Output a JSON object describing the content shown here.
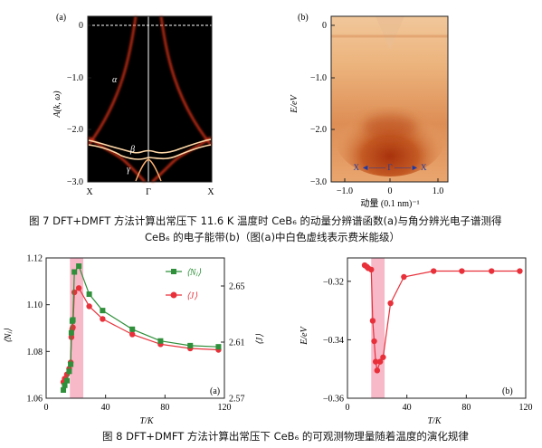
{
  "fig7": {
    "panel_a": {
      "label": "(a)",
      "ylabel": "A(k, ω)",
      "yticks": [
        "0",
        "−1.0",
        "−2.0",
        "−3.0"
      ],
      "xticks": [
        "X",
        "Γ",
        "X"
      ],
      "band_labels": [
        "α",
        "β",
        "γ"
      ]
    },
    "panel_b": {
      "label": "(b)",
      "ylabel": "E/eV",
      "yticks": [
        "0",
        "−1.0",
        "−2.0",
        "−3.0"
      ],
      "xticks": [
        "−1.0",
        "0",
        "1.0"
      ],
      "xlabel": "动量 (0.1 nm)⁻¹",
      "arrow_text": "X ◄—— Γ ——► X"
    },
    "caption_line1": "图  7    DFT+DMFT 方法计算出常压下 11.6 K 温度时 CeB₆ 的动量分辨谱函数(a)与角分辨光电子谱测得",
    "caption_line2": "CeB₆ 的电子能带(b)（图(a)中白色虚线表示费米能级）"
  },
  "fig8": {
    "left": {
      "label": "(a)",
      "xlabel": "T/K",
      "ylabel_left": "⟨Nⱼ⟩",
      "ylabel_right": "⟨J⟩",
      "xticks": [
        "0",
        "40",
        "80",
        "120"
      ],
      "yticks_left": [
        "1.06",
        "1.08",
        "1.10",
        "1.12"
      ],
      "yticks_right": [
        "2.57",
        "2.61",
        "2.65"
      ],
      "legend": [
        "⟨Nⱼ⟩",
        "⟨J⟩"
      ]
    },
    "right": {
      "label": "(b)",
      "xlabel": "T/K",
      "ylabel": "E/eV",
      "xticks": [
        "0",
        "40",
        "80",
        "120"
      ],
      "yticks": [
        "−0.32",
        "−0.34",
        "−0.36"
      ]
    },
    "caption": "图  8    DFT+DMFT 方法计算出常压下 CeB₆ 的可观测物理量随着温度的演化规律"
  },
  "colors": {
    "green": "#2f8f3a",
    "red": "#e8303a",
    "pink": "#f7b8c8",
    "axis": "#222222"
  },
  "chart_data": [
    {
      "type": "line",
      "title": "",
      "xlabel": "T/K",
      "ylabel": "⟨Nⱼ⟩",
      "xlim": [
        0,
        120
      ],
      "ylim": [
        1.06,
        1.12
      ],
      "series": [
        {
          "name": "⟨Nⱼ⟩",
          "axis": "left",
          "x": [
            11.6,
            12.5,
            14,
            15.5,
            16.5,
            17,
            17.6,
            18,
            19,
            22,
            29,
            38,
            58,
            77,
            97,
            116
          ],
          "y": [
            1.0635,
            1.0655,
            1.0675,
            1.0715,
            1.0745,
            1.088,
            1.093,
            1.0935,
            1.114,
            1.1165,
            1.1045,
            1.0975,
            1.0895,
            1.0845,
            1.0825,
            1.082
          ]
        },
        {
          "name": "⟨J⟩",
          "axis": "right",
          "x": [
            11.6,
            12.5,
            14,
            15.5,
            16.5,
            17,
            17.6,
            18,
            19,
            22,
            29,
            38,
            58,
            77,
            97,
            116
          ],
          "y": [
            2.5815,
            2.584,
            2.587,
            2.591,
            2.5955,
            2.6135,
            2.6195,
            2.6205,
            2.6455,
            2.6485,
            2.6355,
            2.6265,
            2.6155,
            2.6085,
            2.6055,
            2.6045
          ]
        }
      ],
      "right_ylim": [
        2.57,
        2.67
      ],
      "shaded_x": [
        16,
        25
      ],
      "grid": false,
      "legend": "top-right"
    },
    {
      "type": "line",
      "title": "",
      "xlabel": "T/K",
      "ylabel": "E/eV",
      "xlim": [
        0,
        120
      ],
      "ylim": [
        -0.36,
        -0.312
      ],
      "series": [
        {
          "x": [
            11.6,
            13,
            14,
            16,
            17,
            18,
            19,
            20,
            22,
            24,
            29,
            38,
            58,
            77,
            97,
            116
          ],
          "y": [
            -0.3145,
            -0.315,
            -0.3155,
            -0.316,
            -0.3335,
            -0.3405,
            -0.3475,
            -0.3505,
            -0.3475,
            -0.346,
            -0.3275,
            -0.3185,
            -0.3165,
            -0.3165,
            -0.3165,
            -0.3165
          ]
        }
      ],
      "shaded_x": [
        16,
        25
      ],
      "grid": false
    }
  ]
}
